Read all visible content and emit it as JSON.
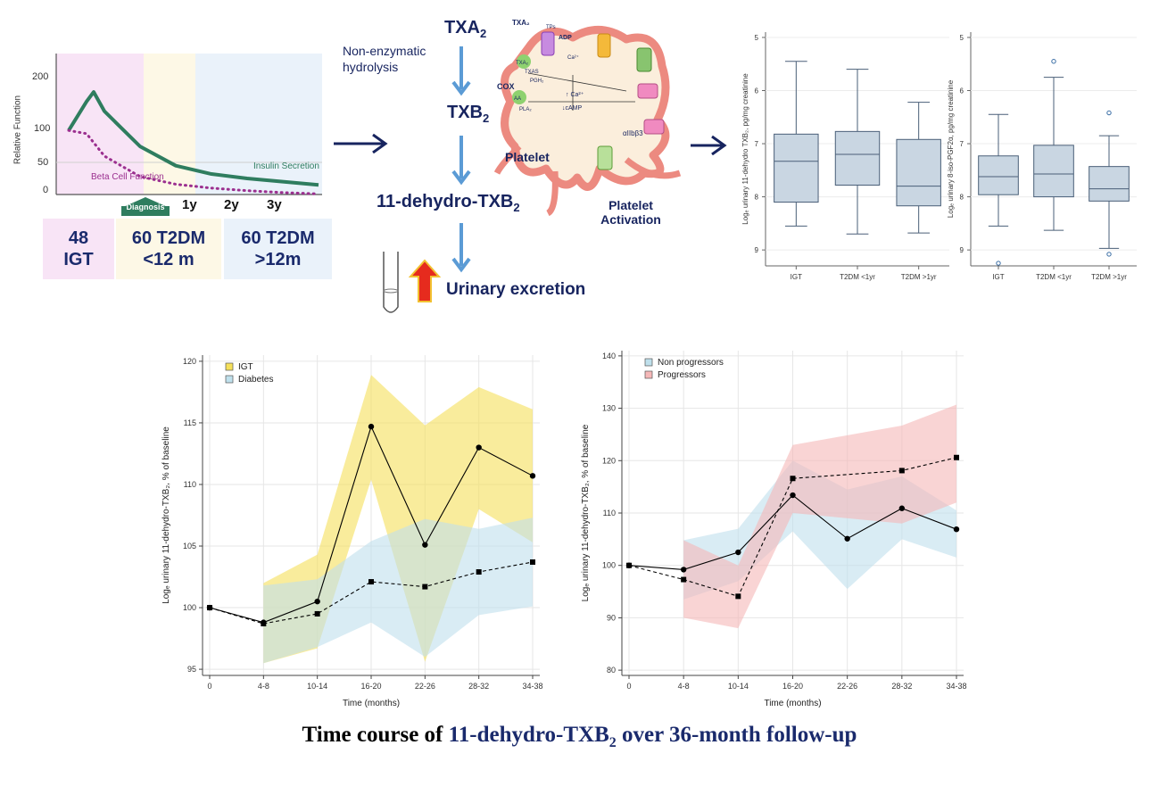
{
  "beta_panel": {
    "ylabel": "Relative Function",
    "yticks": [
      "200",
      "100",
      "50",
      "0"
    ],
    "insulin_label": "Insulin Secretion",
    "beta_label": "Beta Cell Function",
    "diagnosis_label": "Diagnosis",
    "time_marks": [
      "1y",
      "2y",
      "3y"
    ],
    "colors": {
      "insulin": "#2f7d5f",
      "beta": "#9b2f8f",
      "igt_zone": "#f8e4f6",
      "early_zone": "#fdf8e6",
      "late_zone": "#eaf2fa"
    }
  },
  "groups": [
    {
      "line1": "48",
      "line2": "IGT",
      "color": "#f8e4f6"
    },
    {
      "line1": "60 T2DM",
      "line2": "<12 m",
      "color": "#fdf8e6"
    },
    {
      "line1": "60 T2DM",
      "line2": ">12m",
      "color": "#eaf2fa"
    }
  ],
  "pathway": {
    "txa2": "TXA",
    "txa2_sub": "2",
    "hydrolysis": "Non-enzymatic hydrolysis",
    "txb2": "TXB",
    "txb2_sub": "2",
    "metab": "11-dehydro-TXB",
    "metab_sub": "2",
    "excretion": "Urinary excretion",
    "platelet": "Platelet",
    "activation": "Platelet Activation",
    "cell_labels": [
      "TXA₂",
      "TPs",
      "ADP",
      "Ca²⁺",
      "TXA₂",
      "TXAS",
      "PGH₂",
      "COX",
      "AA",
      "PLA₂",
      "↑ Ca²⁺",
      "↓cAMP",
      "αIIbβ3"
    ]
  },
  "box1": {
    "ylabel": "Logₑ urinary 11-dehydro TXB₂, pg/mg creatinine",
    "yticks": [
      "9",
      "8",
      "7",
      "6",
      "5"
    ],
    "categories": [
      "IGT",
      "T2DM <1yr",
      "T2DM >1yr"
    ]
  },
  "box2": {
    "ylabel": "Logₑ urinary 8-iso-PGF2α, pg/mg creatinine",
    "yticks": [
      "9",
      "8",
      "7",
      "6",
      "5"
    ],
    "categories": [
      "IGT",
      "T2DM <1yr",
      "T2DM >1yr"
    ]
  },
  "line1": {
    "ylabel": "Logₑ urinary 11-dehydro-TXB₂, % of baseline",
    "xlabel": "Time (months)",
    "legend": [
      "IGT",
      "Diabetes"
    ]
  },
  "line2": {
    "ylabel": "Logₑ urinary 11-dehydro-TXB₂, % of baseline",
    "xlabel": "Time (months)",
    "legend": [
      "Non progressors",
      "Progressors"
    ]
  },
  "caption": {
    "prefix": "Time course of ",
    "highlight": "11-dehydro-TXB",
    "sub": "2",
    "suffix": " over 36-month follow-up"
  },
  "chart_data": [
    {
      "type": "line",
      "panel": "beta-cell",
      "x_marks": [
        "1y",
        "2y",
        "3y"
      ],
      "series": [
        {
          "name": "Insulin Secretion",
          "x": [
            0,
            0.25,
            0.35,
            0.5,
            1,
            1.5,
            2,
            2.5,
            3,
            3.5
          ],
          "values": [
            100,
            145,
            160,
            130,
            75,
            45,
            32,
            25,
            20,
            15
          ]
        },
        {
          "name": "Beta Cell Function",
          "x": [
            0,
            0.25,
            0.5,
            1,
            1.5,
            2,
            2.5,
            3,
            3.5
          ],
          "values": [
            100,
            95,
            60,
            28,
            16,
            10,
            6,
            3,
            1
          ]
        }
      ],
      "ylim": [
        0,
        220
      ]
    },
    {
      "type": "box",
      "categories": [
        "IGT",
        "T2DM <1yr",
        "T2DM >1yr"
      ],
      "ylim": [
        4.7,
        9.1
      ],
      "yticks": [
        5,
        6,
        7,
        8,
        9
      ],
      "boxes": [
        {
          "min": 5.45,
          "q1": 5.9,
          "median": 6.67,
          "q3": 7.18,
          "max": 8.55,
          "outliers": []
        },
        {
          "min": 5.3,
          "q1": 6.22,
          "median": 6.8,
          "q3": 7.23,
          "max": 8.4,
          "outliers": []
        },
        {
          "min": 5.32,
          "q1": 5.83,
          "median": 6.2,
          "q3": 7.08,
          "max": 7.78,
          "outliers": []
        }
      ]
    },
    {
      "type": "box",
      "categories": [
        "IGT",
        "T2DM <1yr",
        "T2DM >1yr"
      ],
      "ylim": [
        4.7,
        9.1
      ],
      "yticks": [
        5,
        6,
        7,
        8,
        9
      ],
      "boxes": [
        {
          "min": 5.45,
          "q1": 6.04,
          "median": 6.38,
          "q3": 6.77,
          "max": 7.55,
          "outliers": [
            4.75
          ]
        },
        {
          "min": 5.37,
          "q1": 6.0,
          "median": 6.43,
          "q3": 6.97,
          "max": 8.25,
          "outliers": [
            8.55
          ]
        },
        {
          "min": 5.03,
          "q1": 5.92,
          "median": 6.15,
          "q3": 6.57,
          "max": 7.15,
          "outliers": [
            4.92,
            7.58
          ]
        }
      ]
    },
    {
      "type": "line",
      "xlabel": "Time (months)",
      "categories": [
        "0",
        "4-8",
        "10-14",
        "16-20",
        "22-26",
        "28-32",
        "34-38"
      ],
      "ylim": [
        94.5,
        120.5
      ],
      "yticks": [
        95,
        100,
        105,
        110,
        115,
        120
      ],
      "series": [
        {
          "name": "IGT",
          "values": [
            100,
            98.8,
            100.5,
            114.7,
            105.1,
            113.0,
            110.7
          ],
          "lower": [
            null,
            95.5,
            96.7,
            110.4,
            95.6,
            108.0,
            105.3
          ],
          "upper": [
            null,
            102.0,
            104.3,
            118.9,
            114.8,
            117.9,
            116.1
          ],
          "color": "#f5e05a",
          "dash": false,
          "marker": "circle"
        },
        {
          "name": "Diabetes",
          "values": [
            100,
            98.7,
            99.5,
            102.1,
            101.7,
            102.9,
            103.7
          ],
          "lower": [
            null,
            95.5,
            96.8,
            98.8,
            96.0,
            99.4,
            100.1
          ],
          "upper": [
            null,
            101.8,
            102.3,
            105.4,
            107.2,
            106.4,
            107.3
          ],
          "color": "#bfe0ec",
          "dash": true,
          "marker": "square"
        }
      ]
    },
    {
      "type": "line",
      "xlabel": "Time (months)",
      "categories": [
        "0",
        "4-8",
        "10-14",
        "16-20",
        "22-26",
        "28-32",
        "34-38"
      ],
      "ylim": [
        79,
        141
      ],
      "yticks": [
        80,
        90,
        100,
        110,
        120,
        130,
        140
      ],
      "series": [
        {
          "name": "Non progressors",
          "values": [
            100,
            99.2,
            102.5,
            113.4,
            105.1,
            110.9,
            106.9
          ],
          "lower": [
            null,
            93.5,
            97.0,
            106.5,
            95.5,
            105.0,
            101.5
          ],
          "upper": [
            null,
            104.8,
            107.0,
            120.0,
            114.5,
            117.0,
            110.5
          ],
          "color": "#bfe0ec",
          "dash": false,
          "marker": "circle"
        },
        {
          "name": "Progressors",
          "values": [
            100,
            97.3,
            94.1,
            116.6,
            null,
            118.1,
            120.6
          ],
          "lower": [
            null,
            90.0,
            88.0,
            110.0,
            null,
            108.0,
            112.0
          ],
          "upper": [
            null,
            104.8,
            100.0,
            123.0,
            null,
            126.7,
            130.7
          ],
          "color": "#f5b8b8",
          "dash": true,
          "marker": "square"
        }
      ]
    }
  ]
}
